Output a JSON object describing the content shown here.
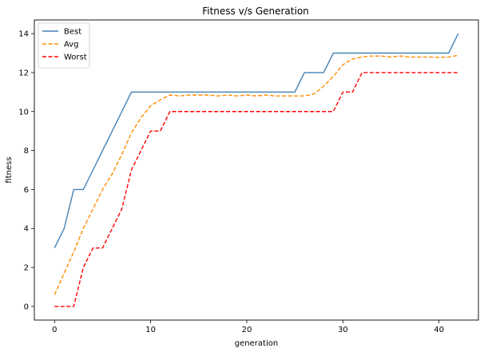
{
  "chart_data": {
    "type": "line",
    "title": "Fitness v/s Generation",
    "xlabel": "generation",
    "ylabel": "fitness",
    "xlim": [
      -2.1,
      44.1
    ],
    "ylim": [
      -0.7,
      14.7
    ],
    "xticks": [
      0,
      10,
      20,
      30,
      40
    ],
    "yticks": [
      0,
      2,
      4,
      6,
      8,
      10,
      12,
      14
    ],
    "grid": false,
    "legend_position": "top-left",
    "x": [
      0,
      1,
      2,
      3,
      4,
      5,
      6,
      7,
      8,
      9,
      10,
      11,
      12,
      13,
      14,
      15,
      16,
      17,
      18,
      19,
      20,
      21,
      22,
      23,
      24,
      25,
      26,
      27,
      28,
      29,
      30,
      31,
      32,
      33,
      34,
      35,
      36,
      37,
      38,
      39,
      40,
      41,
      42
    ],
    "series": [
      {
        "name": "Best",
        "color": "#4682b4",
        "style": "solid",
        "values": [
          3,
          4,
          6,
          6,
          7,
          8,
          9,
          10,
          11,
          11,
          11,
          11,
          11,
          11,
          11,
          11,
          11,
          11,
          11,
          11,
          11,
          11,
          11,
          11,
          11,
          11,
          12,
          12,
          12,
          13,
          13,
          13,
          13,
          13,
          13,
          13,
          13,
          13,
          13,
          13,
          13,
          13,
          14
        ]
      },
      {
        "name": "Avg",
        "color": "#ff8c00",
        "style": "dashed",
        "values": [
          0.6,
          1.7,
          2.8,
          4.0,
          5.0,
          6.0,
          6.8,
          7.8,
          8.9,
          9.7,
          10.3,
          10.6,
          10.85,
          10.8,
          10.85,
          10.85,
          10.85,
          10.8,
          10.85,
          10.8,
          10.85,
          10.8,
          10.85,
          10.8,
          10.8,
          10.8,
          10.8,
          10.9,
          11.3,
          11.8,
          12.4,
          12.7,
          12.8,
          12.85,
          12.85,
          12.8,
          12.85,
          12.8,
          12.8,
          12.8,
          12.78,
          12.8,
          12.88
        ]
      },
      {
        "name": "Worst",
        "color": "#ff0000",
        "style": "dashed",
        "values": [
          0,
          0,
          0,
          2,
          3,
          3,
          4,
          5,
          7,
          8,
          9,
          9,
          10,
          10,
          10,
          10,
          10,
          10,
          10,
          10,
          10,
          10,
          10,
          10,
          10,
          10,
          10,
          10,
          10,
          10,
          11,
          11,
          12,
          12,
          12,
          12,
          12,
          12,
          12,
          12,
          12,
          12,
          12
        ]
      }
    ]
  }
}
